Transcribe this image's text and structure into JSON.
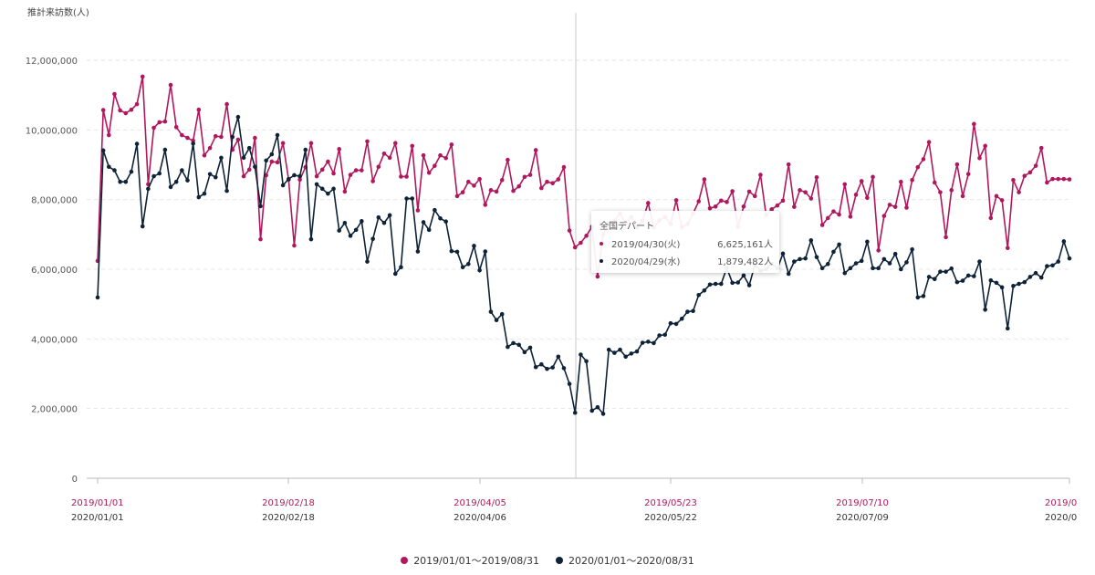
{
  "chart_data": {
    "type": "line",
    "ylabel": "推計来訪数(人)",
    "ylim": [
      0,
      12000000
    ],
    "yticks": [
      "0",
      "2,000,000",
      "4,000,000",
      "6,000,000",
      "8,000,000",
      "10,000,000",
      "12,000,000"
    ],
    "grid": true,
    "legend_position": "bottom",
    "xticks_2019": [
      "2019/01/01",
      "2019/02/18",
      "2019/04/05",
      "2019/05/23",
      "2019/07/10",
      "2019/0"
    ],
    "xticks_2020": [
      "2020/01/01",
      "2020/02/18",
      "2020/04/06",
      "2020/05/22",
      "2020/07/09",
      "2020/0"
    ],
    "series": [
      {
        "name": "2019/01/01～2019/08/31",
        "color": "#b0185e",
        "values_millions": [
          6.24,
          10.57,
          9.85,
          11.03,
          10.56,
          10.48,
          10.58,
          10.74,
          11.53,
          8.44,
          10.06,
          10.22,
          10.24,
          11.29,
          10.08,
          9.85,
          9.77,
          9.69,
          10.58,
          9.27,
          9.48,
          9.82,
          9.8,
          10.74,
          9.43,
          9.72,
          8.67,
          8.86,
          9.77,
          6.86,
          8.7,
          9.09,
          9.07,
          9.62,
          8.57,
          6.68,
          8.57,
          8.93,
          9.62,
          8.67,
          8.86,
          9.09,
          8.75,
          9.45,
          8.23,
          8.71,
          8.84,
          8.84,
          9.67,
          8.53,
          8.94,
          9.32,
          9.2,
          9.62,
          8.66,
          8.66,
          9.54,
          7.69,
          9.27,
          8.77,
          8.97,
          9.27,
          9.19,
          9.58,
          8.1,
          8.21,
          8.51,
          8.4,
          8.59,
          7.85,
          8.27,
          8.23,
          8.56,
          9.14,
          8.25,
          8.38,
          8.65,
          8.71,
          9.42,
          8.33,
          8.51,
          8.47,
          8.58,
          8.93,
          7.11,
          6.63,
          6.76,
          6.96,
          7.22,
          5.79,
          7.0,
          7.3,
          7.4,
          7.6,
          7.3,
          7.5,
          7.2,
          7.4,
          7.9,
          7.2,
          7.4,
          7.5,
          7.3,
          7.98,
          7.2,
          7.3,
          7.6,
          7.95,
          8.58,
          7.75,
          7.8,
          7.97,
          7.93,
          8.24,
          7.22,
          7.8,
          8.23,
          8.1,
          8.71,
          7.55,
          7.72,
          7.83,
          7.97,
          9.01,
          7.79,
          8.27,
          8.21,
          8.03,
          8.64,
          7.27,
          7.47,
          7.66,
          7.57,
          8.44,
          7.51,
          8.14,
          8.53,
          8.05,
          8.65,
          6.54,
          7.53,
          7.85,
          7.79,
          8.51,
          7.77,
          8.56,
          8.93,
          9.16,
          9.65,
          8.49,
          8.21,
          6.92,
          8.27,
          9.01,
          8.1,
          8.73,
          10.17,
          9.19,
          9.54,
          7.47,
          8.1,
          7.98,
          6.61,
          8.56,
          8.21,
          8.68,
          8.78,
          8.97,
          9.48,
          8.49,
          8.59,
          8.59,
          8.59,
          8.58
        ]
      },
      {
        "name": "2020/01/01～2020/08/31",
        "color": "#0e2337",
        "values_millions": [
          5.19,
          9.41,
          8.94,
          8.84,
          8.51,
          8.51,
          8.8,
          9.6,
          7.23,
          8.31,
          8.67,
          8.75,
          9.43,
          8.36,
          8.51,
          8.84,
          8.55,
          9.61,
          8.07,
          8.17,
          8.73,
          8.64,
          9.2,
          8.25,
          9.8,
          10.37,
          9.2,
          9.48,
          8.94,
          7.81,
          9.12,
          9.3,
          9.85,
          8.41,
          8.59,
          8.7,
          8.67,
          9.43,
          6.86,
          8.44,
          8.31,
          8.17,
          8.31,
          7.11,
          7.33,
          6.96,
          7.13,
          7.38,
          6.22,
          6.87,
          7.49,
          7.33,
          7.55,
          5.87,
          6.06,
          8.03,
          8.03,
          6.51,
          7.35,
          7.13,
          7.7,
          7.46,
          7.37,
          6.52,
          6.5,
          6.06,
          6.15,
          6.67,
          5.97,
          6.51,
          4.78,
          4.54,
          4.71,
          3.77,
          3.88,
          3.83,
          3.62,
          3.75,
          3.19,
          3.27,
          3.14,
          3.18,
          3.49,
          3.16,
          2.71,
          1.88,
          3.55,
          3.36,
          1.94,
          2.04,
          1.85,
          3.69,
          3.6,
          3.69,
          3.49,
          3.58,
          3.64,
          3.89,
          3.92,
          3.88,
          4.1,
          4.12,
          4.45,
          4.43,
          4.58,
          4.78,
          4.8,
          5.26,
          5.39,
          5.56,
          5.58,
          5.58,
          6.04,
          5.61,
          5.62,
          5.82,
          5.54,
          6.13,
          5.96,
          6.0,
          6.16,
          6.02,
          6.45,
          5.87,
          6.22,
          6.29,
          6.31,
          6.83,
          6.35,
          6.03,
          6.15,
          6.5,
          6.71,
          5.89,
          6.03,
          6.17,
          6.24,
          6.79,
          6.03,
          6.03,
          6.29,
          6.17,
          6.44,
          6.0,
          6.2,
          6.57,
          5.19,
          5.23,
          5.78,
          5.72,
          5.93,
          5.93,
          6.02,
          5.63,
          5.67,
          5.82,
          5.8,
          6.22,
          4.84,
          5.68,
          5.61,
          5.48,
          4.3,
          5.52,
          5.58,
          5.63,
          5.78,
          5.89,
          5.76,
          6.09,
          6.11,
          6.22,
          6.8,
          6.31
        ]
      }
    ],
    "tooltip": {
      "title": "全国デパート",
      "rows": [
        {
          "date": "2019/04/30(火)",
          "value": "6,625,161人",
          "color": "#b0185e"
        },
        {
          "date": "2020/04/29(水)",
          "value": "1,879,482人",
          "color": "#0e2337"
        }
      ]
    }
  }
}
